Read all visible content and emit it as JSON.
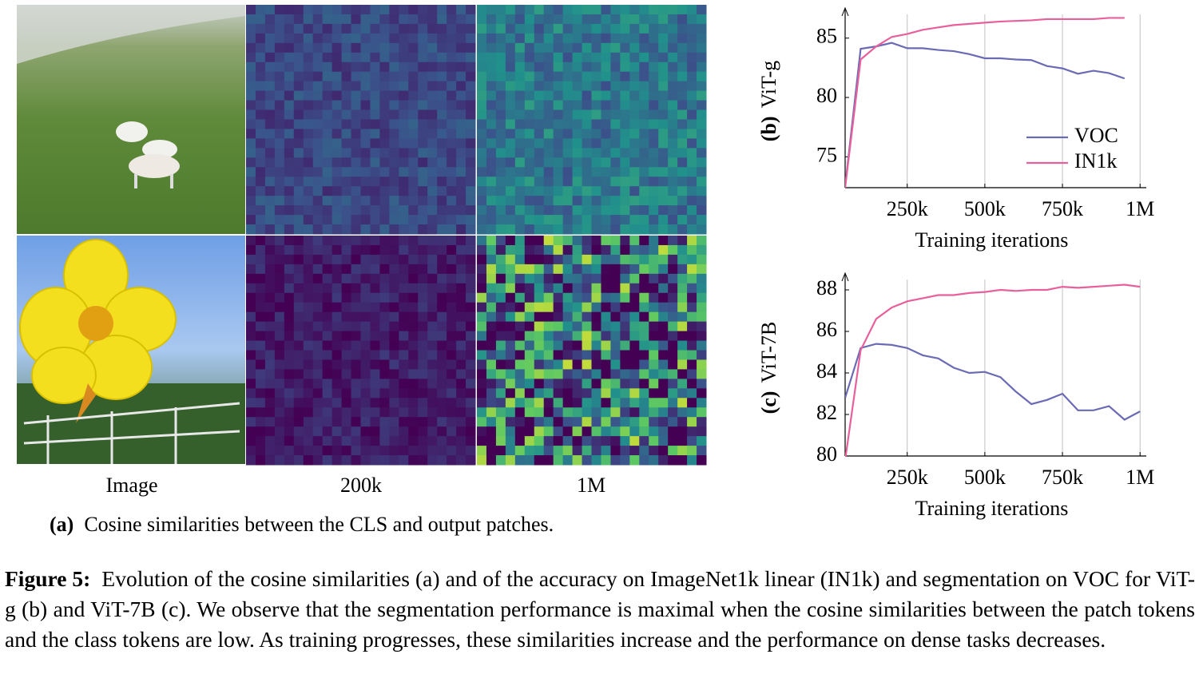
{
  "figure": {
    "panel_a": {
      "columns": [
        "Image",
        "200k",
        "1M"
      ],
      "label": "(a)",
      "caption": "Cosine similarities between the CLS and output patches."
    },
    "caption_label": "Figure 5:",
    "caption": "Evolution of the cosine similarities (a) and of the accuracy on ImageNet1k linear (IN1k) and segmentation on VOC for ViT-g (b) and ViT-7B (c). We observe that the segmentation performance is maximal when the cosine similarities between the patch tokens and the class tokens are low. As training progresses, these similarities increase and the performance on dense tasks decreases."
  },
  "chart_data": [
    {
      "type": "line",
      "panel_label": "(b)",
      "ylabel": "ViT-g",
      "xlabel": "Training iterations",
      "x": [
        50000,
        100000,
        150000,
        200000,
        250000,
        300000,
        350000,
        400000,
        450000,
        500000,
        550000,
        600000,
        650000,
        700000,
        750000,
        800000,
        850000,
        900000,
        950000
      ],
      "series": [
        {
          "name": "VOC",
          "color": "#6b6bb5",
          "values": [
            72.5,
            84.1,
            84.3,
            84.6,
            84.15,
            84.15,
            84.0,
            83.9,
            83.65,
            83.3,
            83.3,
            83.2,
            83.15,
            82.65,
            82.45,
            82.0,
            82.25,
            82.05,
            81.6
          ]
        },
        {
          "name": "IN1k",
          "color": "#e8609b",
          "values": [
            72.4,
            83.2,
            84.3,
            85.1,
            85.35,
            85.7,
            85.9,
            86.1,
            86.2,
            86.3,
            86.4,
            86.45,
            86.5,
            86.6,
            86.6,
            86.6,
            86.6,
            86.7,
            86.7
          ]
        }
      ],
      "xlim": [
        50000,
        1020000
      ],
      "xticks": [
        {
          "value": 250000,
          "label": "250k"
        },
        {
          "value": 500000,
          "label": "500k"
        },
        {
          "value": 750000,
          "label": "750k"
        },
        {
          "value": 1000000,
          "label": "1M"
        }
      ],
      "ylim": [
        72.4,
        87
      ],
      "yticks": [
        75,
        80,
        85
      ],
      "grid": "x",
      "legend": "lower right"
    },
    {
      "type": "line",
      "panel_label": "(c)",
      "ylabel": "ViT-7B",
      "xlabel": "Training iterations",
      "x": [
        50000,
        100000,
        150000,
        200000,
        250000,
        300000,
        350000,
        400000,
        450000,
        500000,
        550000,
        600000,
        650000,
        700000,
        750000,
        800000,
        850000,
        900000,
        950000,
        1000000
      ],
      "series": [
        {
          "name": "VOC",
          "color": "#6b6bb5",
          "values": [
            82.8,
            85.2,
            85.4,
            85.35,
            85.2,
            84.85,
            84.7,
            84.25,
            84.0,
            84.05,
            83.8,
            83.1,
            82.5,
            82.7,
            83.0,
            82.2,
            82.2,
            82.4,
            81.75,
            82.15
          ]
        },
        {
          "name": "IN1k",
          "color": "#e8609b",
          "values": [
            79.8,
            85.1,
            86.6,
            87.15,
            87.45,
            87.6,
            87.75,
            87.75,
            87.85,
            87.9,
            88.0,
            87.95,
            88.0,
            88.0,
            88.15,
            88.1,
            88.15,
            88.2,
            88.25,
            88.15
          ]
        }
      ],
      "xlim": [
        50000,
        1020000
      ],
      "xticks": [
        {
          "value": 250000,
          "label": "250k"
        },
        {
          "value": 500000,
          "label": "500k"
        },
        {
          "value": 750000,
          "label": "750k"
        },
        {
          "value": 1000000,
          "label": "1M"
        }
      ],
      "ylim": [
        80,
        88.5
      ],
      "yticks": [
        80,
        82,
        84,
        86,
        88
      ],
      "grid": "x",
      "legend": "none"
    }
  ]
}
